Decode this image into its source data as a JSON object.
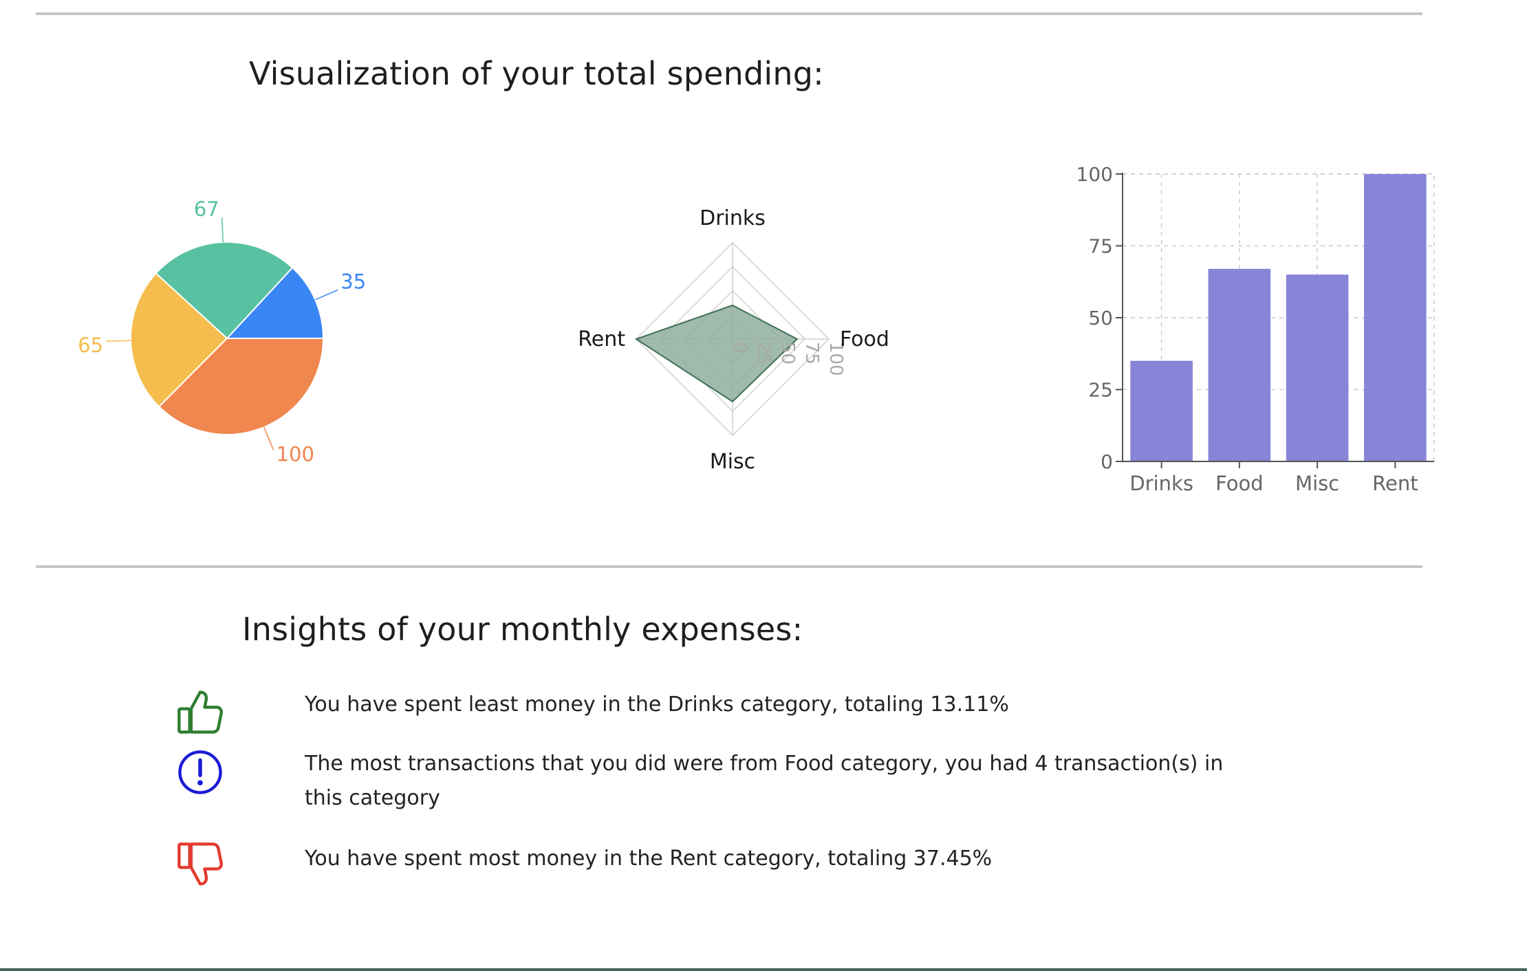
{
  "sections": {
    "visualization_title": "Visualization of your total spending:",
    "insights_title": "Insights of your monthly expenses:"
  },
  "chart_data": [
    {
      "type": "pie",
      "categories": [
        "Drinks",
        "Food",
        "Misc",
        "Rent"
      ],
      "values": [
        35,
        67,
        65,
        100
      ],
      "colors": [
        "#3b86f5",
        "#57c1a1",
        "#f4bd4d",
        "#ef874f"
      ],
      "labels": [
        "35",
        "67",
        "65",
        "100"
      ]
    },
    {
      "type": "radar",
      "categories": [
        "Drinks",
        "Food",
        "Misc",
        "Rent"
      ],
      "values": [
        35,
        67,
        65,
        100
      ],
      "rlim": [
        0,
        100
      ],
      "ticks": [
        0,
        25,
        50,
        75,
        100
      ],
      "tick_labels": [
        "0",
        "25",
        "50",
        "75",
        "100"
      ],
      "fill": "#8fae9c",
      "stroke": "#3f6e57",
      "grid": true
    },
    {
      "type": "bar",
      "categories": [
        "Drinks",
        "Food",
        "Misc",
        "Rent"
      ],
      "values": [
        35,
        67,
        65,
        100
      ],
      "ylim": [
        0,
        100
      ],
      "yticks": [
        0,
        25,
        50,
        75,
        100
      ],
      "ytick_labels": [
        "0",
        "25",
        "50",
        "75",
        "100"
      ],
      "color": "#8884d8",
      "grid": true
    }
  ],
  "insights": [
    {
      "icon": "thumbs-up-icon",
      "color": "#2e7d32",
      "text": "You have spent least money in the Drinks category, totaling 13.11%"
    },
    {
      "icon": "info-exclamation-icon",
      "color": "#1a1ad6",
      "text": "The most transactions that you did were from Food category, you had 4 transaction(s) in this category"
    },
    {
      "icon": "thumbs-down-icon",
      "color": "#e23b2e",
      "text": "You have spent most money in the Rent category, totaling 37.45%"
    }
  ]
}
